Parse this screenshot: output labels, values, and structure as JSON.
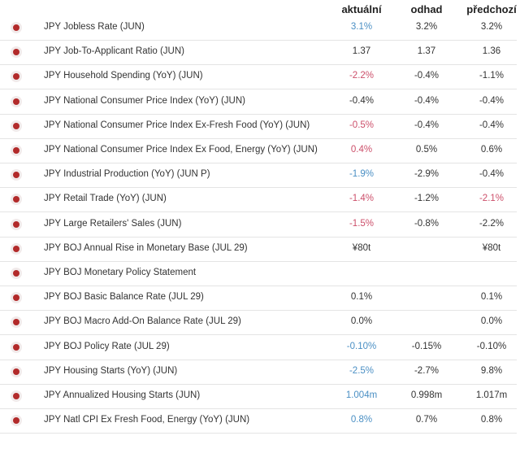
{
  "table": {
    "headers": [
      "aktuální",
      "odhad",
      "předchozí"
    ],
    "rows": [
      {
        "event": "JPY Jobless Rate (JUN)",
        "actual": "3.1%",
        "forecast": "3.2%",
        "previous": "3.2%",
        "actual_color": "#4a8fc4"
      },
      {
        "event": "JPY Job-To-Applicant Ratio (JUN)",
        "actual": "1.37",
        "forecast": "1.37",
        "previous": "1.36"
      },
      {
        "event": "JPY Household Spending (YoY) (JUN)",
        "actual": "-2.2%",
        "forecast": "-0.4%",
        "previous": "-1.1%",
        "actual_color": "#cc4f6a"
      },
      {
        "event": "JPY National Consumer Price Index (YoY) (JUN)",
        "actual": "-0.4%",
        "forecast": "-0.4%",
        "previous": "-0.4%"
      },
      {
        "event": "JPY National Consumer Price Index Ex-Fresh Food (YoY) (JUN)",
        "actual": "-0.5%",
        "forecast": "-0.4%",
        "previous": "-0.4%",
        "actual_color": "#cc4f6a"
      },
      {
        "event": "JPY National Consumer Price Index Ex Food, Energy (YoY) (JUN)",
        "actual": "0.4%",
        "forecast": "0.5%",
        "previous": "0.6%",
        "actual_color": "#cc4f6a"
      },
      {
        "event": "JPY Industrial Production (YoY) (JUN P)",
        "actual": "-1.9%",
        "forecast": "-2.9%",
        "previous": "-0.4%",
        "actual_color": "#4a8fc4"
      },
      {
        "event": "JPY Retail Trade (YoY) (JUN)",
        "actual": "-1.4%",
        "forecast": "-1.2%",
        "previous": "-2.1%",
        "actual_color": "#cc4f6a",
        "previous_color": "#cc4f6a"
      },
      {
        "event": "JPY Large Retailers' Sales (JUN)",
        "actual": "-1.5%",
        "forecast": "-0.8%",
        "previous": "-2.2%",
        "actual_color": "#cc4f6a"
      },
      {
        "event": "JPY BOJ Annual Rise in Monetary Base (JUL 29)",
        "actual": "¥80t",
        "previous": "¥80t"
      },
      {
        "event": "JPY BOJ Monetary Policy Statement"
      },
      {
        "event": "JPY BOJ Basic Balance Rate (JUL 29)",
        "actual": "0.1%",
        "previous": "0.1%"
      },
      {
        "event": "JPY BOJ Macro Add-On Balance Rate (JUL 29)",
        "actual": "0.0%",
        "previous": "0.0%"
      },
      {
        "event": "JPY BOJ Policy Rate (JUL 29)",
        "actual": "-0.10%",
        "forecast": "-0.15%",
        "previous": "-0.10%",
        "actual_color": "#4a8fc4"
      },
      {
        "event": "JPY Housing Starts (YoY) (JUN)",
        "actual": "-2.5%",
        "forecast": "-2.7%",
        "previous": "9.8%",
        "actual_color": "#4a8fc4"
      },
      {
        "event": "JPY Annualized Housing Starts (JUN)",
        "actual": "1.004m",
        "forecast": "0.998m",
        "previous": "1.017m",
        "actual_color": "#4a8fc4"
      },
      {
        "event": "JPY Natl CPI Ex Fresh Food, Energy (YoY) (JUN)",
        "actual": "0.8%",
        "forecast": "0.7%",
        "previous": "0.8%",
        "actual_color": "#4a8fc4"
      }
    ]
  }
}
